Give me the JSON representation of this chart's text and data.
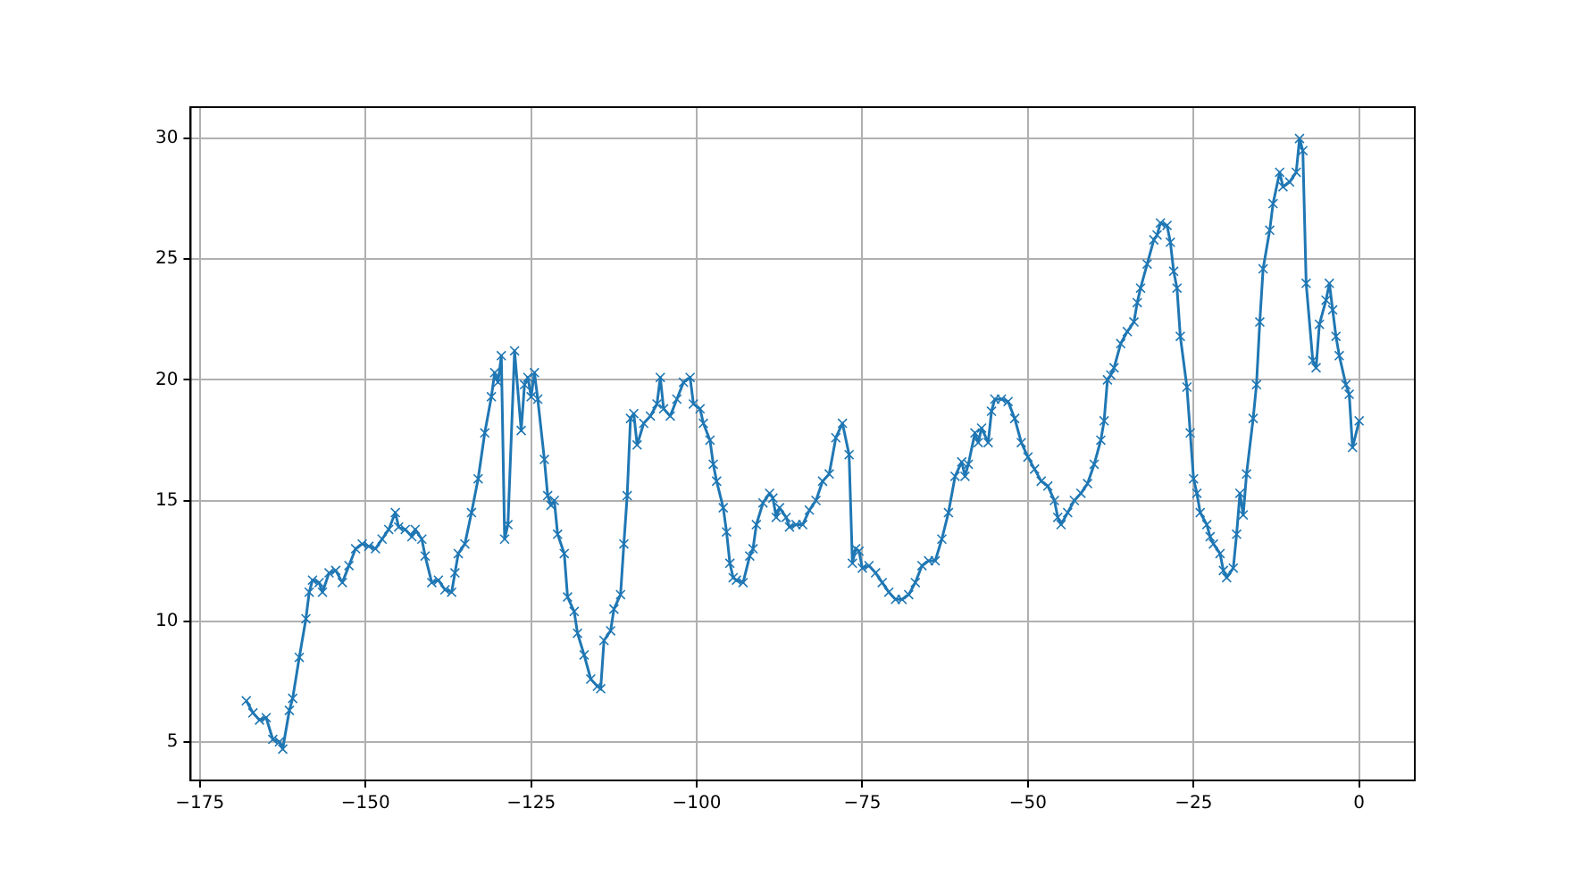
{
  "chart_data": {
    "type": "line",
    "marker": "cross",
    "grid": true,
    "xlim": [
      -176.4,
      8.4
    ],
    "ylim": [
      3.4,
      31.3
    ],
    "xticks": [
      {
        "value": -175,
        "label": "−175"
      },
      {
        "value": -150,
        "label": "−150"
      },
      {
        "value": -125,
        "label": "−125"
      },
      {
        "value": -100,
        "label": "−100"
      },
      {
        "value": -75,
        "label": "−75"
      },
      {
        "value": -50,
        "label": "−50"
      },
      {
        "value": -25,
        "label": "−25"
      },
      0
    ],
    "yticks": [
      5,
      10,
      15,
      20,
      25,
      30
    ],
    "series": [
      {
        "color": "#1f77b4",
        "x": [
          -168,
          -167,
          -166,
          -165,
          -164,
          -163,
          -162.5,
          -161.5,
          -161,
          -160,
          -159,
          -158.5,
          -158,
          -157,
          -156.5,
          -155.5,
          -154.5,
          -153.5,
          -152.5,
          -151.5,
          -150.5,
          -149.5,
          -148.5,
          -147.5,
          -146.5,
          -145.5,
          -145,
          -144,
          -143,
          -142.5,
          -141.5,
          -141,
          -140,
          -139,
          -138,
          -137,
          -136.5,
          -136,
          -135,
          -134,
          -133,
          -132,
          -131,
          -130.5,
          -130,
          -129.5,
          -129,
          -128.5,
          -127.5,
          -126.5,
          -126,
          -125.5,
          -125,
          -124.5,
          -124,
          -123,
          -122.5,
          -122,
          -121.5,
          -121,
          -120,
          -119.5,
          -118.5,
          -118,
          -117,
          -116,
          -115,
          -114.5,
          -114,
          -113,
          -112.5,
          -111.5,
          -111,
          -110.5,
          -110,
          -109.5,
          -109,
          -108,
          -107,
          -106,
          -105.5,
          -105,
          -104,
          -103,
          -102,
          -101,
          -100.5,
          -99.5,
          -99,
          -98,
          -97.5,
          -97,
          -96,
          -95.5,
          -95,
          -94.5,
          -94,
          -93,
          -92,
          -91.5,
          -91,
          -90,
          -89,
          -88.5,
          -88,
          -87.5,
          -86.5,
          -86,
          -85,
          -84,
          -83,
          -82,
          -81,
          -80,
          -79,
          -78,
          -77,
          -76.5,
          -76,
          -75.5,
          -75,
          -74,
          -73,
          -72,
          -71,
          -70,
          -69,
          -68,
          -67,
          -66,
          -65,
          -64,
          -63,
          -62,
          -61,
          -60,
          -59.5,
          -59,
          -58,
          -57.5,
          -57,
          -56,
          -55.5,
          -55,
          -54,
          -53,
          -52,
          -51,
          -50,
          -49,
          -48,
          -47,
          -46,
          -45.5,
          -45,
          -44,
          -43,
          -42,
          -41,
          -40,
          -39,
          -38.5,
          -38,
          -37.5,
          -37,
          -36,
          -35,
          -34,
          -33.5,
          -33,
          -32,
          -31,
          -30.5,
          -30,
          -29,
          -28.5,
          -28,
          -27.5,
          -27,
          -26,
          -25.5,
          -25,
          -24.5,
          -24,
          -23,
          -22.5,
          -22,
          -21,
          -20.5,
          -20,
          -19,
          -18.5,
          -18,
          -17.5,
          -17,
          -16,
          -15.5,
          -15,
          -14.5,
          -13.5,
          -13,
          -12,
          -11.5,
          -10.5,
          -9.5,
          -9,
          -8.5,
          -8,
          -7,
          -6.5,
          -6,
          -5,
          -4.5,
          -4,
          -3.5,
          -3,
          -2,
          -1.5,
          -1,
          0
        ],
        "values": [
          6.7,
          6.2,
          5.9,
          6.0,
          5.1,
          5.0,
          4.7,
          6.3,
          6.8,
          8.5,
          10.1,
          11.2,
          11.7,
          11.6,
          11.2,
          12.0,
          12.1,
          11.6,
          12.3,
          13.0,
          13.2,
          13.1,
          13.0,
          13.4,
          13.8,
          14.5,
          13.9,
          13.8,
          13.5,
          13.8,
          13.4,
          12.7,
          11.6,
          11.7,
          11.3,
          11.2,
          12.0,
          12.8,
          13.2,
          14.5,
          15.9,
          17.8,
          19.3,
          20.3,
          19.9,
          21.0,
          13.4,
          14.0,
          21.2,
          17.9,
          19.8,
          20.1,
          19.3,
          20.3,
          19.2,
          16.7,
          15.2,
          14.8,
          15.0,
          13.6,
          12.8,
          11.0,
          10.4,
          9.5,
          8.6,
          7.6,
          7.3,
          7.2,
          9.2,
          9.6,
          10.5,
          11.1,
          13.2,
          15.2,
          18.4,
          18.6,
          17.3,
          18.2,
          18.5,
          19.0,
          20.1,
          18.8,
          18.5,
          19.2,
          19.9,
          20.1,
          19.0,
          18.8,
          18.2,
          17.5,
          16.5,
          15.8,
          14.7,
          13.7,
          12.4,
          11.8,
          11.7,
          11.6,
          12.7,
          13.0,
          14.0,
          14.9,
          15.3,
          15.1,
          14.3,
          14.7,
          14.3,
          13.9,
          14.0,
          14.0,
          14.6,
          15.0,
          15.8,
          16.1,
          17.6,
          18.2,
          16.9,
          12.4,
          13.0,
          12.9,
          12.2,
          12.3,
          12.0,
          11.6,
          11.2,
          10.9,
          10.9,
          11.1,
          11.6,
          12.3,
          12.5,
          12.5,
          13.4,
          14.5,
          16.0,
          16.6,
          16.0,
          16.5,
          17.8,
          17.4,
          18.0,
          17.4,
          18.7,
          19.2,
          19.2,
          19.1,
          18.4,
          17.4,
          16.8,
          16.3,
          15.8,
          15.6,
          15.0,
          14.3,
          14.0,
          14.5,
          15.0,
          15.3,
          15.7,
          16.5,
          17.5,
          18.3,
          20.0,
          20.2,
          20.5,
          21.5,
          22.0,
          22.4,
          23.2,
          23.8,
          24.8,
          25.8,
          26.0,
          26.5,
          26.4,
          25.7,
          24.5,
          23.8,
          21.8,
          19.7,
          17.8,
          15.9,
          15.3,
          14.5,
          14.0,
          13.5,
          13.2,
          12.8,
          12.1,
          11.8,
          12.2,
          13.6,
          15.3,
          14.4,
          16.1,
          18.4,
          19.8,
          22.4,
          24.6,
          26.2,
          27.3,
          28.6,
          28.0,
          28.2,
          28.6,
          30.0,
          29.5,
          24.0,
          20.8,
          20.5,
          22.3,
          23.3,
          24.0,
          22.9,
          21.8,
          21.0,
          19.8,
          19.4,
          17.2,
          18.3
        ]
      }
    ]
  }
}
